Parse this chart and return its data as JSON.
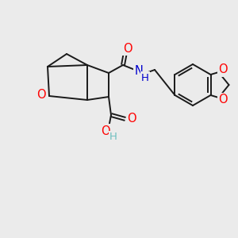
{
  "background_color": "#ebebeb",
  "bond_color": "#1a1a1a",
  "bond_width": 1.4,
  "font_size": 10.5,
  "fig_size": [
    3.0,
    3.0
  ],
  "dpi": 100,
  "colors": {
    "O": "#ff0000",
    "N": "#0000cd",
    "H": "#6fbfbf",
    "C": "#1a1a1a"
  }
}
